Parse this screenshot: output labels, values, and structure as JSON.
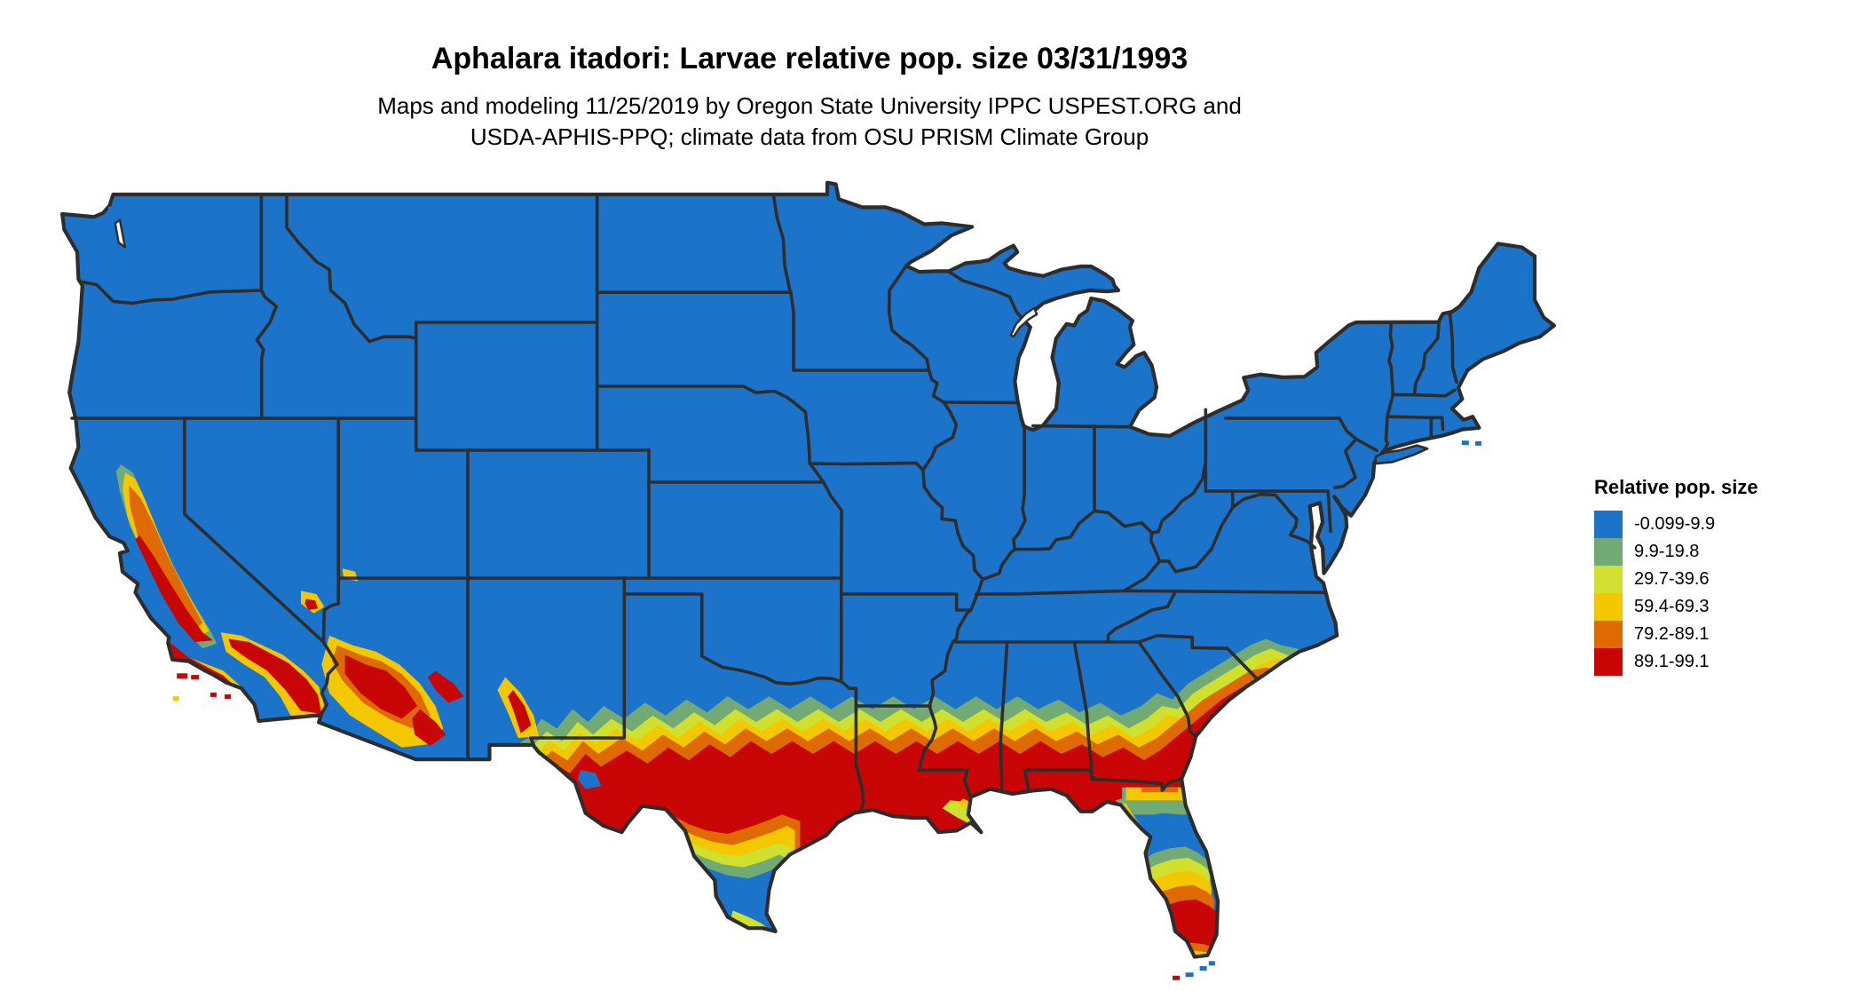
{
  "header": {
    "title": "Aphalara itadori: Larvae relative pop. size 03/31/1993",
    "subtitle_line1": "Maps and modeling 11/25/2019 by Oregon State University IPPC USPEST.ORG and",
    "subtitle_line2": "USDA-APHIS-PPQ; climate data from OSU PRISM Climate Group"
  },
  "legend": {
    "title": "Relative pop. size",
    "entries": [
      {
        "key": "blue",
        "label": "-0.099-9.9",
        "color": "#1c74ca"
      },
      {
        "key": "green",
        "label": "9.9-19.8",
        "color": "#72aa76"
      },
      {
        "key": "ygreen",
        "label": "29.7-39.6",
        "color": "#cfe02e"
      },
      {
        "key": "yellow",
        "label": "59.4-69.3",
        "color": "#f3c801"
      },
      {
        "key": "orange",
        "label": "79.2-89.1",
        "color": "#df6a02"
      },
      {
        "key": "red",
        "label": "89.1-99.1",
        "color": "#c90606"
      }
    ]
  },
  "map": {
    "background": "#ffffff",
    "border_color": "#2d2d2d"
  }
}
